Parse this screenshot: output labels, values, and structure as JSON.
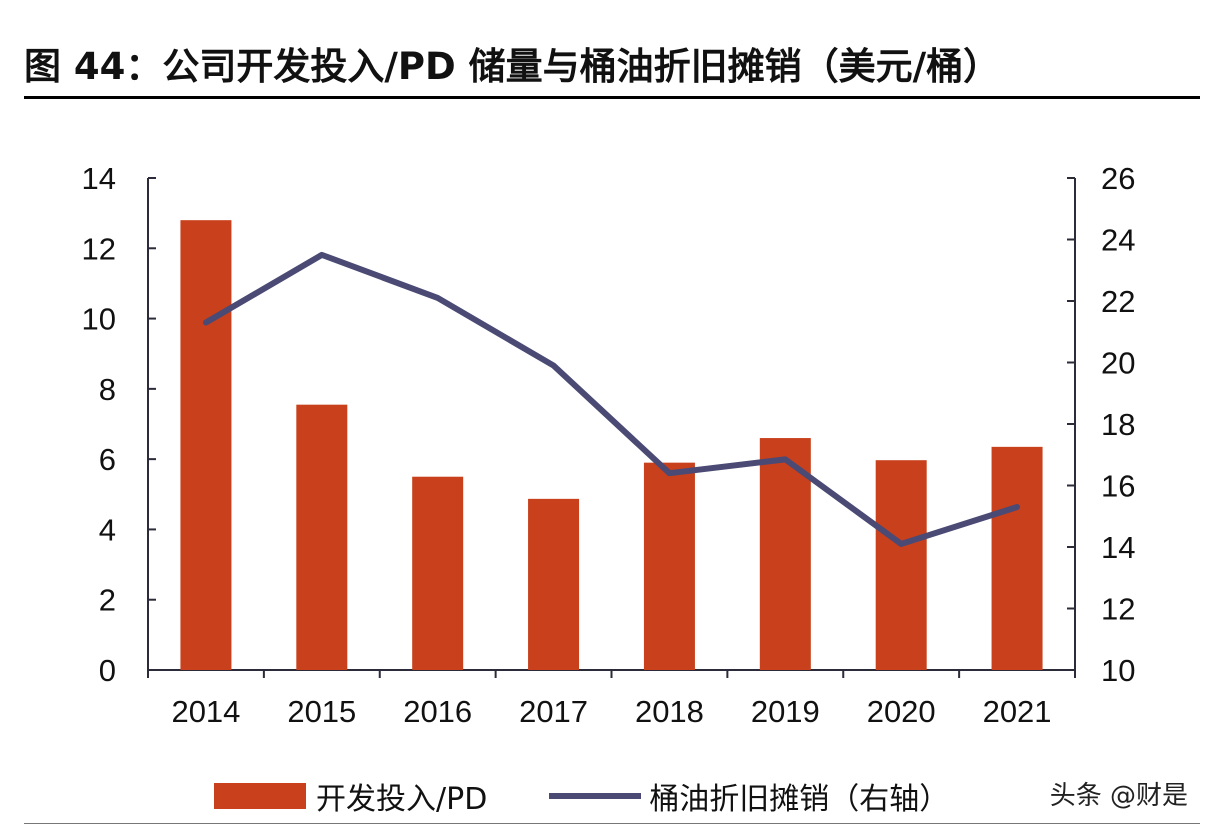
{
  "header": {
    "title": "图 44：公司开发投入/PD 储量与桶油折旧摊销（美元/桶）"
  },
  "chart_data": {
    "type": "bar+line",
    "categories": [
      "2014",
      "2015",
      "2016",
      "2017",
      "2018",
      "2019",
      "2020",
      "2021"
    ],
    "series": [
      {
        "name": "开发投入/PD",
        "type": "bar",
        "axis": "left",
        "color": "#c8401c",
        "values": [
          12.8,
          7.55,
          5.5,
          4.87,
          5.9,
          6.6,
          5.97,
          6.35
        ]
      },
      {
        "name": "桶油折旧摊销（右轴）",
        "type": "line",
        "axis": "right",
        "color": "#4a4a74",
        "values": [
          21.3,
          23.5,
          22.1,
          19.9,
          16.4,
          16.85,
          14.1,
          15.3
        ]
      }
    ],
    "left_axis": {
      "ylim": [
        0,
        14
      ],
      "ticks": [
        "0",
        "2",
        "4",
        "6",
        "8",
        "10",
        "12",
        "14"
      ]
    },
    "right_axis": {
      "ylim": [
        10,
        26
      ],
      "ticks": [
        "10",
        "12",
        "14",
        "16",
        "18",
        "20",
        "22",
        "24",
        "26"
      ]
    },
    "grid": false,
    "legend_position": "bottom"
  },
  "watermark": "头条 @财是"
}
